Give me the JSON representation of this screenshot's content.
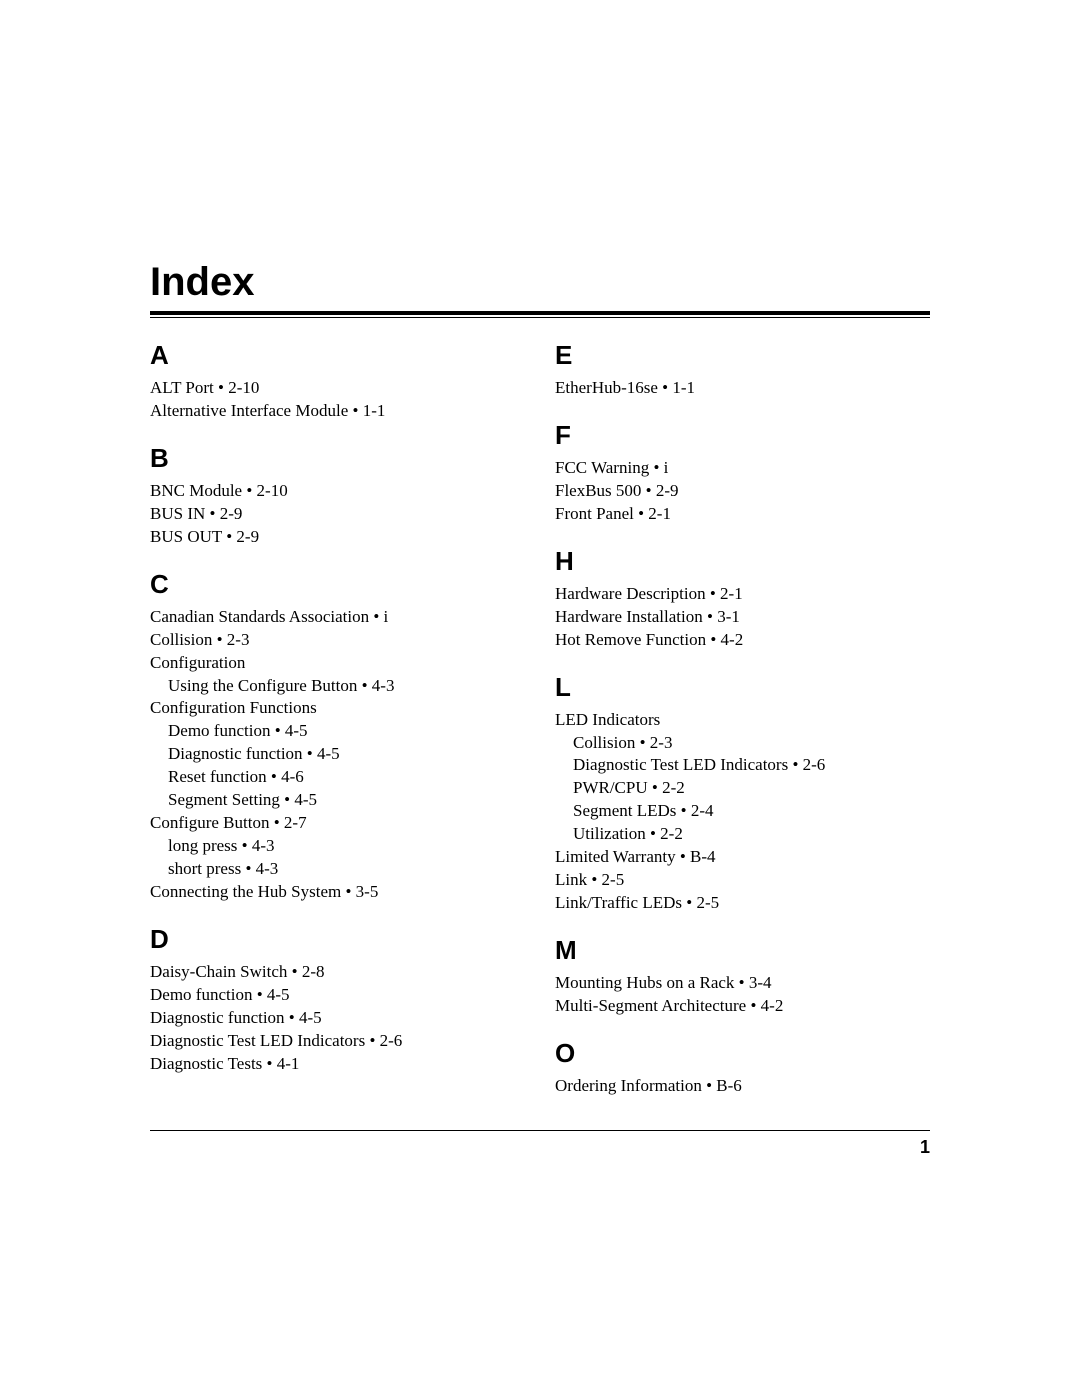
{
  "title": "Index",
  "page_number": "1",
  "colors": {
    "text": "#000000",
    "background": "#ffffff",
    "rule": "#000000"
  },
  "left": {
    "sections": [
      {
        "letter": "A",
        "entries": [
          {
            "text": "ALT Port • 2-10",
            "indent": 0
          },
          {
            "text": "Alternative Interface Module • 1-1",
            "indent": 0
          }
        ]
      },
      {
        "letter": "B",
        "entries": [
          {
            "text": "BNC Module • 2-10",
            "indent": 0
          },
          {
            "text": "BUS IN • 2-9",
            "indent": 0
          },
          {
            "text": "BUS OUT  • 2-9",
            "indent": 0
          }
        ]
      },
      {
        "letter": "C",
        "entries": [
          {
            "text": "Canadian Standards Association • i",
            "indent": 0
          },
          {
            "text": "Collision • 2-3",
            "indent": 0
          },
          {
            "text": "Configuration",
            "indent": 0
          },
          {
            "text": "Using the Configure Button • 4-3",
            "indent": 1
          },
          {
            "text": "Configuration Functions",
            "indent": 0
          },
          {
            "text": "Demo function • 4-5",
            "indent": 1
          },
          {
            "text": "Diagnostic function • 4-5",
            "indent": 1
          },
          {
            "text": "Reset function • 4-6",
            "indent": 1
          },
          {
            "text": "Segment Setting • 4-5",
            "indent": 1
          },
          {
            "text": "Configure Button • 2-7",
            "indent": 0
          },
          {
            "text": "long press • 4-3",
            "indent": 1
          },
          {
            "text": "short press • 4-3",
            "indent": 1
          },
          {
            "text": "Connecting the Hub System • 3-5",
            "indent": 0
          }
        ]
      },
      {
        "letter": "D",
        "entries": [
          {
            "text": "Daisy-Chain Switch • 2-8",
            "indent": 0
          },
          {
            "text": "Demo function • 4-5",
            "indent": 0
          },
          {
            "text": "Diagnostic function • 4-5",
            "indent": 0
          },
          {
            "text": "Diagnostic Test LED Indicators • 2-6",
            "indent": 0
          },
          {
            "text": "Diagnostic Tests • 4-1",
            "indent": 0
          }
        ]
      }
    ]
  },
  "right": {
    "sections": [
      {
        "letter": "E",
        "entries": [
          {
            "text": "EtherHub-16se • 1-1",
            "indent": 0
          }
        ]
      },
      {
        "letter": "F",
        "entries": [
          {
            "text": "FCC Warning • i",
            "indent": 0
          },
          {
            "text": "FlexBus 500 • 2-9",
            "indent": 0
          },
          {
            "text": "Front Panel • 2-1",
            "indent": 0
          }
        ]
      },
      {
        "letter": "H",
        "entries": [
          {
            "text": "Hardware Description • 2-1",
            "indent": 0
          },
          {
            "text": "Hardware Installation • 3-1",
            "indent": 0
          },
          {
            "text": "Hot Remove Function • 4-2",
            "indent": 0
          }
        ]
      },
      {
        "letter": "L",
        "entries": [
          {
            "text": "LED Indicators",
            "indent": 0
          },
          {
            "text": "Collision • 2-3",
            "indent": 1
          },
          {
            "text": "Diagnostic Test LED Indicators • 2-6",
            "indent": 1
          },
          {
            "text": "PWR/CPU • 2-2",
            "indent": 1
          },
          {
            "text": "Segment LEDs • 2-4",
            "indent": 1
          },
          {
            "text": "Utilization • 2-2",
            "indent": 1
          },
          {
            "text": "Limited Warranty • B-4",
            "indent": 0
          },
          {
            "text": "Link • 2-5",
            "indent": 0
          },
          {
            "text": "Link/Traffic LEDs • 2-5",
            "indent": 0
          }
        ]
      },
      {
        "letter": "M",
        "entries": [
          {
            "text": "Mounting Hubs on a Rack • 3-4",
            "indent": 0
          },
          {
            "text": "Multi-Segment Architecture • 4-2",
            "indent": 0
          }
        ]
      },
      {
        "letter": "O",
        "entries": [
          {
            "text": "Ordering Information • B-6",
            "indent": 0
          }
        ]
      }
    ]
  }
}
